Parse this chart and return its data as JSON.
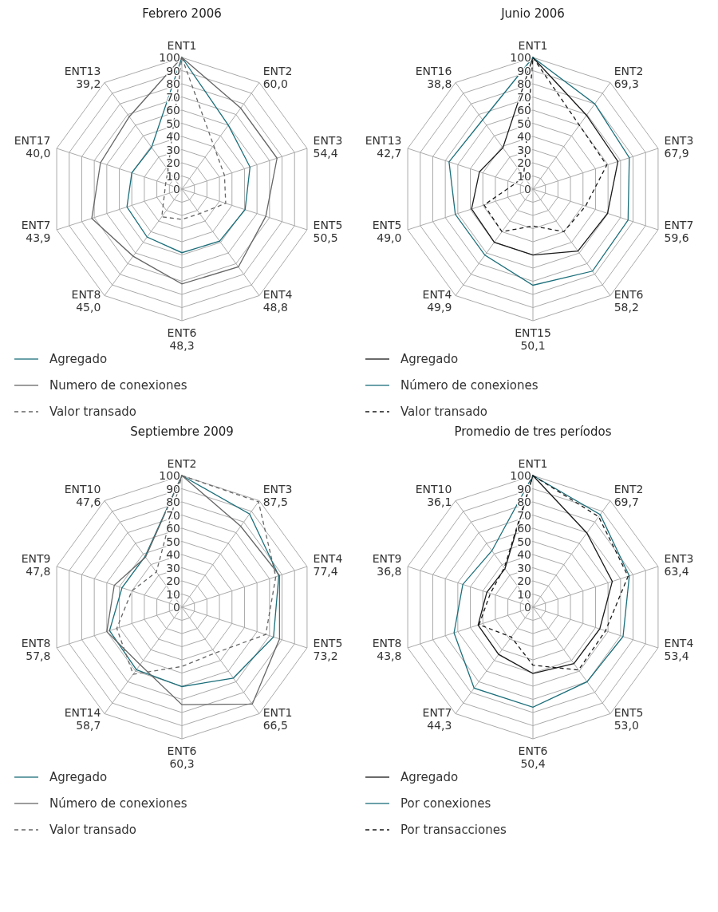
{
  "chart_data": [
    {
      "type": "radar",
      "title": "Febrero 2006",
      "categories": [
        "ENT1",
        "ENT2\n60,0",
        "ENT3\n54,4",
        "ENT5\n50,5",
        "ENT4\n48,8",
        "ENT6\n48,3",
        "ENT8\n45,0",
        "ENT7\n43,9",
        "ENT17\n40,0",
        "ENT13\n39,2"
      ],
      "ylim": [
        0,
        100
      ],
      "yticks": [
        0,
        10,
        20,
        30,
        40,
        50,
        60,
        70,
        80,
        90,
        100
      ],
      "legend": "bottom",
      "series": [
        {
          "name": "Agregado",
          "color": "#1b6e7a",
          "values": [
            100,
            60.0,
            54.4,
            50.5,
            48.8,
            48.3,
            45.0,
            43.9,
            40.0,
            39.2
          ]
        },
        {
          "name": "Numero de conexiones",
          "color": "#666666",
          "values": [
            100,
            76,
            76,
            67,
            73,
            72,
            63,
            72,
            65,
            68
          ]
        },
        {
          "name": "Valor transado",
          "color": "#666666",
          "line_style": "dashed",
          "values": [
            100,
            41,
            34,
            35,
            23,
            23,
            26,
            14,
            13,
            18
          ]
        }
      ]
    },
    {
      "type": "radar",
      "title": "Junio 2006",
      "categories": [
        "ENT1",
        "ENT2\n69,3",
        "ENT3\n67,9",
        "ENT7\n59,6",
        "ENT6\n58,2",
        "ENT15\n50,1",
        "ENT4\n49,9",
        "ENT5\n49,0",
        "ENT13\n42,7",
        "ENT16\n38,8"
      ],
      "ylim": [
        0,
        100
      ],
      "yticks": [
        0,
        10,
        20,
        30,
        40,
        50,
        60,
        70,
        80,
        90,
        100
      ],
      "legend": "bottom",
      "series": [
        {
          "name": "Agregado",
          "color": "#1a1a1a",
          "values": [
            100,
            69.3,
            67.9,
            59.6,
            58.2,
            50.1,
            49.9,
            49.0,
            42.7,
            38.8
          ]
        },
        {
          "name": "Número de conexiones",
          "color": "#1b6e7a",
          "values": [
            100,
            80,
            77,
            76,
            77,
            73,
            62,
            62,
            67,
            65
          ]
        },
        {
          "name": "Valor transado",
          "color": "#1a1a1a",
          "line_style": "dashed",
          "values": [
            100,
            60,
            59,
            42,
            40,
            28,
            40,
            39,
            14,
            12
          ]
        }
      ]
    },
    {
      "type": "radar",
      "title": "Septiembre 2009",
      "categories": [
        "ENT2",
        "ENT3\n87,5",
        "ENT4\n77,4",
        "ENT5\n73,2",
        "ENT1\n66,5",
        "ENT6\n60,3",
        "ENT14\n58,7",
        "ENT8\n57,8",
        "ENT9\n47,8",
        "ENT10\n47,6"
      ],
      "ylim": [
        0,
        100
      ],
      "yticks": [
        0,
        10,
        20,
        30,
        40,
        50,
        60,
        70,
        80,
        90,
        100
      ],
      "legend": "bottom",
      "series": [
        {
          "name": "Agregado",
          "color": "#1b6e7a",
          "values": [
            100,
            87.5,
            77.4,
            73.2,
            66.5,
            60.3,
            58.7,
            57.8,
            47.8,
            47.6
          ]
        },
        {
          "name": "Número de conexiones",
          "color": "#666666",
          "values": [
            100,
            76,
            78,
            78,
            91,
            74,
            54,
            60,
            54,
            47
          ]
        },
        {
          "name": "Valor transado",
          "color": "#666666",
          "line_style": "dashed",
          "values": [
            100,
            99,
            75,
            67,
            43,
            45,
            63,
            52,
            40,
            33
          ]
        }
      ]
    },
    {
      "type": "radar",
      "title": "Promedio de tres períodos",
      "categories": [
        "ENT1",
        "ENT2\n69,7",
        "ENT3\n63,4",
        "ENT4\n53,4",
        "ENT5\n53,0",
        "ENT6\n50,4",
        "ENT7\n44,3",
        "ENT8\n43,8",
        "ENT9\n36,8",
        "ENT10\n36,1"
      ],
      "ylim": [
        0,
        100
      ],
      "yticks": [
        0,
        10,
        20,
        30,
        40,
        50,
        60,
        70,
        80,
        90,
        100
      ],
      "legend": "bottom",
      "series": [
        {
          "name": "Agregado",
          "color": "#1a1a1a",
          "values": [
            100,
            69.7,
            63.4,
            53.4,
            53.0,
            50.4,
            44.3,
            43.8,
            36.8,
            36.1
          ]
        },
        {
          "name": "Por conexiones",
          "color": "#1b6e7a",
          "values": [
            100,
            87,
            77,
            72,
            70,
            76,
            76,
            63,
            56,
            53
          ]
        },
        {
          "name": "Por transacciones",
          "color": "#1a1a1a",
          "line_style": "dashed",
          "values": [
            100,
            85,
            76,
            58,
            59,
            44,
            28,
            43,
            34,
            37
          ]
        }
      ]
    }
  ]
}
